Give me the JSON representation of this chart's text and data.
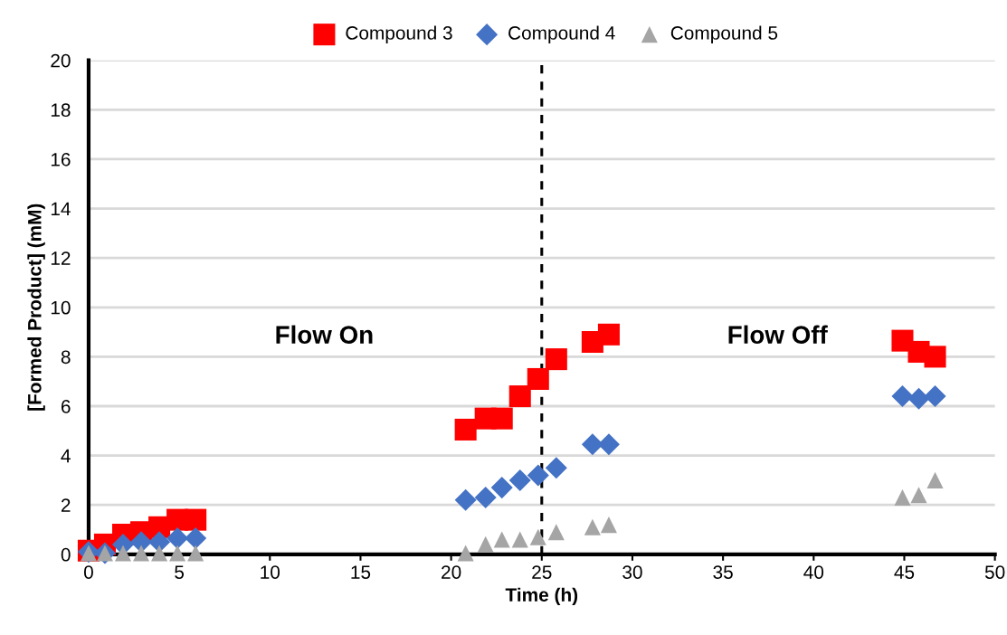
{
  "chart_data": {
    "type": "scatter",
    "xlabel": "Time (h)",
    "ylabel": "[Formed Product] (mM)",
    "xlim": [
      0,
      50
    ],
    "xticks": [
      0,
      5,
      10,
      15,
      20,
      25,
      30,
      35,
      40,
      45,
      50
    ],
    "ylim": [
      0,
      20
    ],
    "yticks": [
      0,
      2,
      4,
      6,
      8,
      10,
      12,
      14,
      16,
      18,
      20
    ],
    "grid": "y",
    "legend": "top",
    "x": [
      0,
      0.9,
      1.9,
      2.9,
      3.9,
      4.9,
      5.9,
      20.8,
      21.9,
      22.8,
      23.8,
      24.8,
      25.8,
      27.8,
      28.7,
      44.9,
      45.8,
      46.7
    ],
    "series": [
      {
        "name": "Compound 3",
        "color": "#ff0000",
        "marker": "square",
        "values": [
          0.15,
          0.4,
          0.8,
          0.9,
          1.1,
          1.4,
          1.4,
          5.05,
          5.5,
          5.5,
          6.4,
          7.1,
          7.9,
          8.6,
          8.9,
          8.65,
          8.2,
          8.0
        ]
      },
      {
        "name": "Compound 4",
        "color": "#4472c4",
        "marker": "diamond",
        "values": [
          0.1,
          0.05,
          0.4,
          0.5,
          0.5,
          0.65,
          0.65,
          2.2,
          2.3,
          2.7,
          3.0,
          3.2,
          3.5,
          4.45,
          4.45,
          6.4,
          6.3,
          6.4
        ]
      },
      {
        "name": "Compound 5",
        "color": "#a5a5a5",
        "marker": "triangle",
        "values": [
          0.05,
          0.05,
          0.05,
          0.05,
          0.05,
          0.05,
          0.05,
          0.05,
          0.4,
          0.6,
          0.6,
          0.7,
          0.9,
          1.1,
          1.2,
          2.3,
          2.4,
          3.0
        ]
      }
    ],
    "ref_lines": [
      {
        "axis": "x",
        "value": 25,
        "color": "#000000",
        "line_style": "dashed"
      }
    ],
    "annotations": [
      "Flow On",
      "Flow Off"
    ]
  }
}
